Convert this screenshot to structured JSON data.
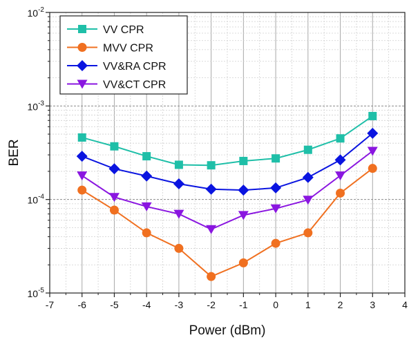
{
  "chart_data": {
    "type": "line",
    "xlabel": "Power (dBm)",
    "ylabel": "BER",
    "xlim": [
      -7,
      4
    ],
    "ylim": [
      1e-05,
      0.01
    ],
    "yscale": "log",
    "x_ticks": [
      "-7",
      "-6",
      "-5",
      "-4",
      "-3",
      "-2",
      "-1",
      "0",
      "1",
      "2",
      "3",
      "4"
    ],
    "y_ticks": [
      {
        "base": "10",
        "exp": "-5"
      },
      {
        "base": "10",
        "exp": "-4"
      },
      {
        "base": "10",
        "exp": "-3"
      },
      {
        "base": "10",
        "exp": "-2"
      }
    ],
    "grid": true,
    "legend_position": "top-left",
    "x": [
      -6,
      -5,
      -4,
      -3,
      -2,
      -1,
      0,
      1,
      2,
      3
    ],
    "series": [
      {
        "name": "VV CPR",
        "color": "#1fbfa8",
        "marker": "square",
        "values": [
          0.00046,
          0.00037,
          0.00029,
          0.000235,
          0.000232,
          0.000258,
          0.000275,
          0.00034,
          0.00045,
          0.00078
        ]
      },
      {
        "name": "MVV CPR",
        "color": "#f07020",
        "marker": "circle",
        "values": [
          0.000126,
          7.7e-05,
          4.4e-05,
          3e-05,
          1.5e-05,
          2.1e-05,
          3.4e-05,
          4.4e-05,
          0.000117,
          0.000215
        ]
      },
      {
        "name": "VV&RA CPR",
        "color": "#0a14e0",
        "marker": "diamond",
        "values": [
          0.00029,
          0.000213,
          0.000178,
          0.000147,
          0.000129,
          0.000126,
          0.000133,
          0.000172,
          0.000265,
          0.00051
        ]
      },
      {
        "name": "VV&CT CPR",
        "color": "#8a16e0",
        "marker": "triangle-down",
        "values": [
          0.00018,
          0.000106,
          8.4e-05,
          7e-05,
          4.8e-05,
          6.8e-05,
          8e-05,
          9.9e-05,
          0.00018,
          0.00033
        ]
      }
    ]
  }
}
